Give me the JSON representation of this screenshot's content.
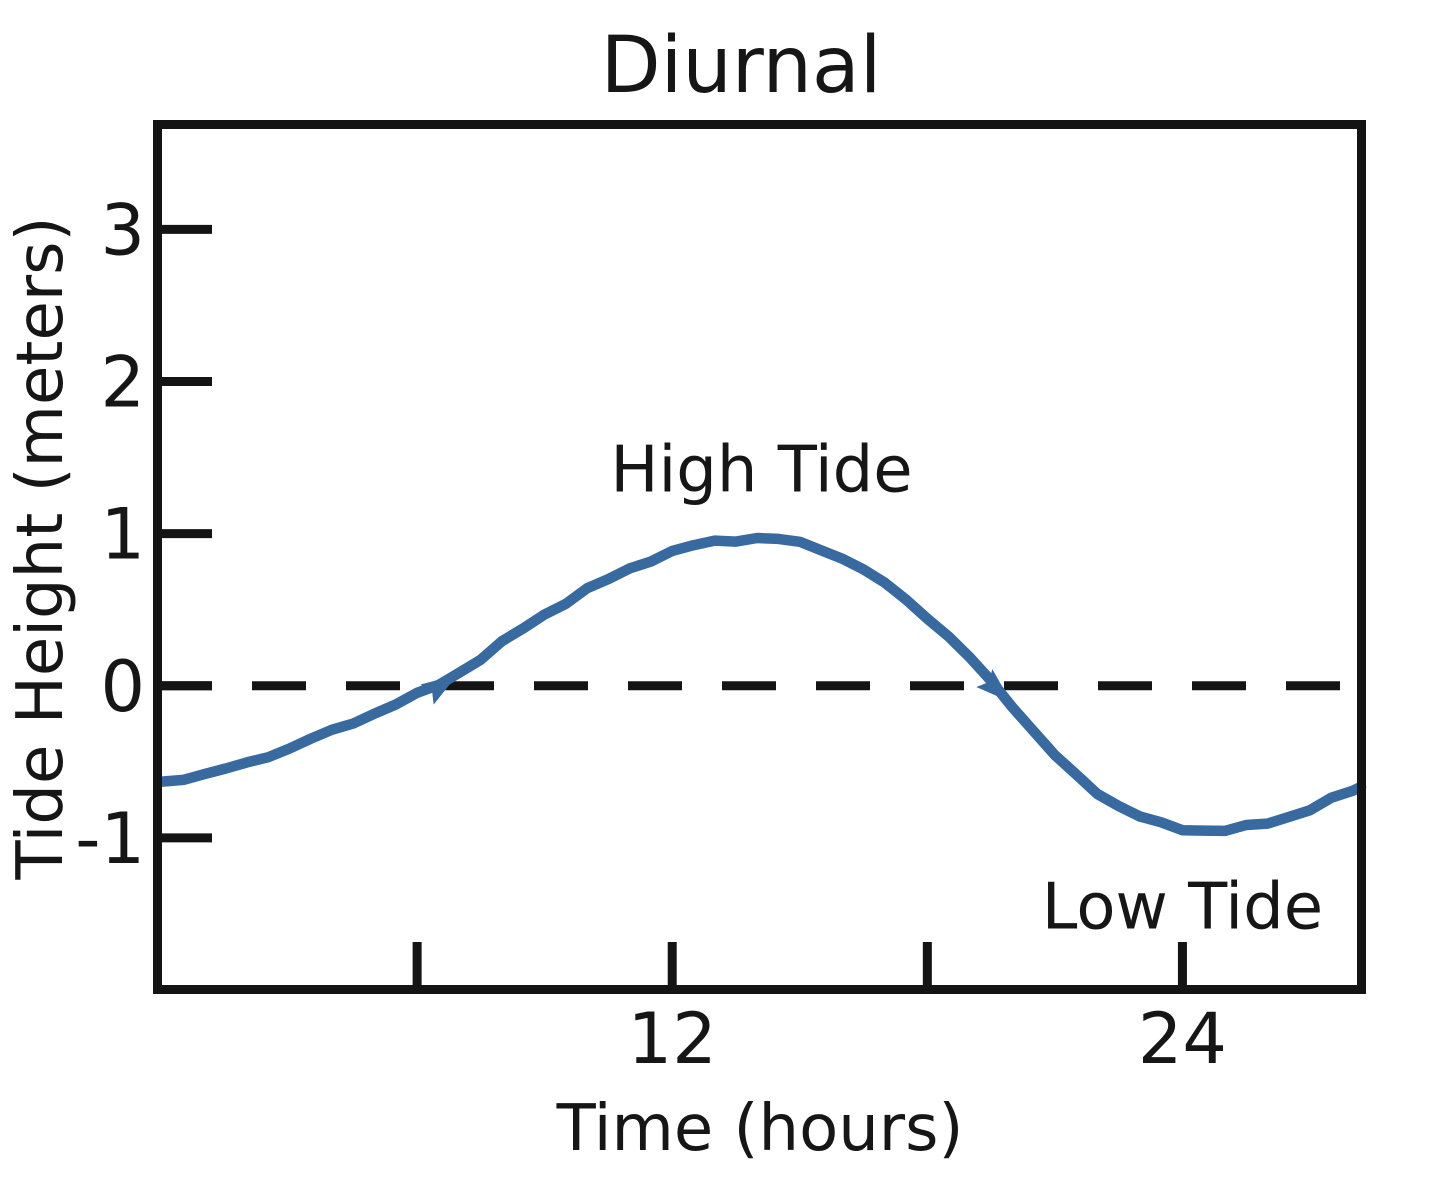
{
  "figure": {
    "background": "#ffffff",
    "axis_color": "#141414",
    "text_color": "#161616"
  },
  "chart_data": {
    "type": "line",
    "title": "Diurnal",
    "xlabel": "Time (hours)",
    "ylabel": "Tide Height (meters)",
    "xlim": [
      0,
      28.2
    ],
    "ylim": [
      -2.0,
      3.66
    ],
    "grid": false,
    "legend": "none",
    "xticks": [
      {
        "value": 6,
        "label": ""
      },
      {
        "value": 12,
        "label": "12"
      },
      {
        "value": 18,
        "label": ""
      },
      {
        "value": 24,
        "label": "24"
      }
    ],
    "yticks": [
      {
        "value": 3,
        "label": "3"
      },
      {
        "value": 2,
        "label": "2"
      },
      {
        "value": 1,
        "label": "1"
      },
      {
        "value": 0,
        "label": "0"
      },
      {
        "value": -1,
        "label": "-1"
      }
    ],
    "zero_line": {
      "y": 0,
      "style": "dashed",
      "color": "#141414"
    },
    "series": [
      {
        "name": "Tide height",
        "color": "#38699f",
        "x": [
          0,
          0.5,
          1,
          1.5,
          2,
          2.5,
          3,
          3.5,
          4,
          4.5,
          5,
          5.5,
          6,
          6.5,
          7,
          7.5,
          8,
          8.5,
          9,
          9.5,
          10,
          10.5,
          11,
          11.5,
          12,
          12.5,
          13,
          13.5,
          14,
          14.5,
          15,
          15.5,
          16,
          16.5,
          17,
          17.5,
          18,
          18.5,
          19,
          19.5,
          20,
          20.5,
          21,
          21.5,
          22,
          22.5,
          23,
          23.5,
          24,
          24.5,
          25,
          25.5,
          26,
          26.5,
          27,
          27.5,
          28,
          28.2
        ],
        "y": [
          -0.63,
          -0.61,
          -0.58,
          -0.55,
          -0.51,
          -0.46,
          -0.41,
          -0.35,
          -0.3,
          -0.24,
          -0.18,
          -0.12,
          -0.06,
          0.01,
          0.09,
          0.18,
          0.28,
          0.38,
          0.47,
          0.55,
          0.63,
          0.7,
          0.77,
          0.83,
          0.88,
          0.92,
          0.95,
          0.96,
          0.97,
          0.96,
          0.94,
          0.9,
          0.84,
          0.76,
          0.67,
          0.57,
          0.45,
          0.32,
          0.18,
          0.03,
          -0.13,
          -0.3,
          -0.46,
          -0.59,
          -0.7,
          -0.79,
          -0.86,
          -0.91,
          -0.94,
          -0.95,
          -0.95,
          -0.93,
          -0.9,
          -0.86,
          -0.81,
          -0.75,
          -0.69,
          -0.66
        ]
      }
    ],
    "annotations": [
      {
        "text": "High Tide",
        "x": 14.1,
        "y": 1.42
      },
      {
        "text": "Low Tide",
        "x": 24.0,
        "y": -1.45
      }
    ],
    "direction_markers": [
      {
        "x": 6.55,
        "y": 0.0,
        "angle_deg": -33
      },
      {
        "x": 19.62,
        "y": -0.02,
        "angle_deg": 42
      }
    ]
  }
}
